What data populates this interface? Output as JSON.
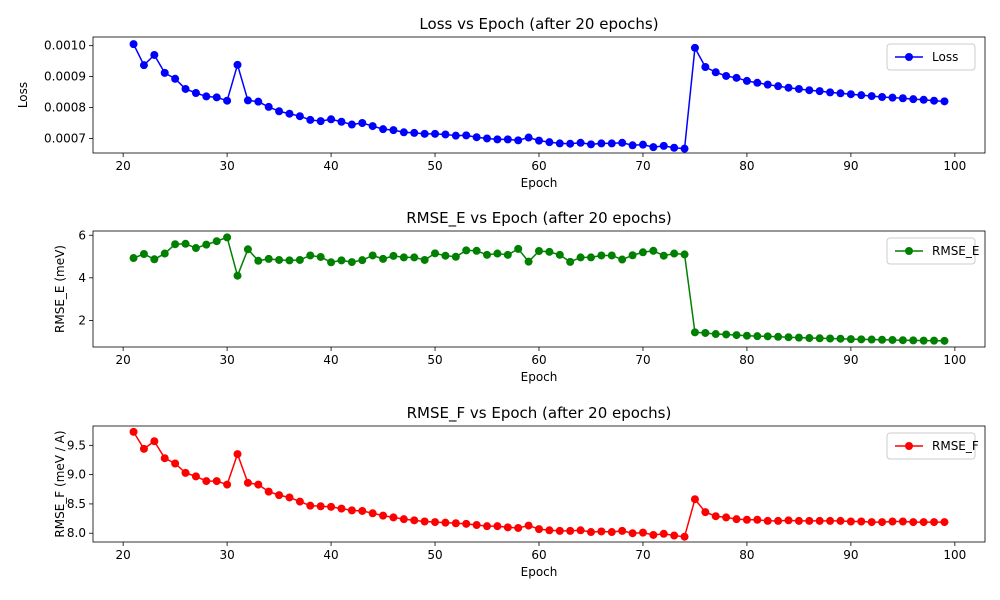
{
  "chart_data": [
    {
      "type": "line",
      "title": "Loss vs Epoch (after 20 epochs)",
      "xlabel": "Epoch",
      "ylabel": "Loss",
      "xlim": [
        17.1,
        102.9
      ],
      "ylim": [
        0.000653,
        0.001028
      ],
      "xticks": [
        20,
        30,
        40,
        50,
        60,
        70,
        80,
        90,
        100
      ],
      "yticks": [
        0.0007,
        0.0008,
        0.0009,
        0.001
      ],
      "ytick_labels": [
        "0.0007",
        "0.0008",
        "0.0009",
        "0.0010"
      ],
      "legend": "upper-right",
      "grid": false,
      "series": [
        {
          "name": "Loss",
          "color": "#0000ff",
          "marker": "circle",
          "x": [
            21,
            22,
            23,
            24,
            25,
            26,
            27,
            28,
            29,
            30,
            31,
            32,
            33,
            34,
            35,
            36,
            37,
            38,
            39,
            40,
            41,
            42,
            43,
            44,
            45,
            46,
            47,
            48,
            49,
            50,
            51,
            52,
            53,
            54,
            55,
            56,
            57,
            58,
            59,
            60,
            61,
            62,
            63,
            64,
            65,
            66,
            67,
            68,
            69,
            70,
            71,
            72,
            73,
            74,
            75,
            76,
            77,
            78,
            79,
            80,
            81,
            82,
            83,
            84,
            85,
            86,
            87,
            88,
            89,
            90,
            91,
            92,
            93,
            94,
            95,
            96,
            97,
            98,
            99
          ],
          "values": [
            0.001005,
            0.000937,
            0.00097,
            0.000912,
            0.000893,
            0.00086,
            0.000847,
            0.000836,
            0.000833,
            0.000822,
            0.000938,
            0.000823,
            0.000819,
            0.000802,
            0.000788,
            0.00078,
            0.000772,
            0.00076,
            0.000756,
            0.000762,
            0.000754,
            0.000745,
            0.00075,
            0.00074,
            0.00073,
            0.000727,
            0.00072,
            0.000718,
            0.000715,
            0.000715,
            0.000713,
            0.000709,
            0.00071,
            0.000704,
            0.0007,
            0.000697,
            0.000697,
            0.000694,
            0.000703,
            0.000693,
            0.000688,
            0.000684,
            0.000683,
            0.000686,
            0.000681,
            0.000684,
            0.000684,
            0.000686,
            0.000678,
            0.00068,
            0.000672,
            0.000676,
            0.00067,
            0.000667,
            0.000993,
            0.000931,
            0.000914,
            0.000902,
            0.000896,
            0.000886,
            0.00088,
            0.000874,
            0.000869,
            0.000864,
            0.00086,
            0.000856,
            0.000853,
            0.000849,
            0.000846,
            0.000843,
            0.00084,
            0.000837,
            0.000834,
            0.000832,
            0.00083,
            0.000827,
            0.000825,
            0.000822,
            0.00082
          ]
        }
      ]
    },
    {
      "type": "line",
      "title": "RMSE_E vs Epoch (after 20 epochs)",
      "xlabel": "Epoch",
      "ylabel": "RMSE_E (meV)",
      "xlim": [
        17.1,
        102.9
      ],
      "ylim": [
        0.75,
        6.2
      ],
      "xticks": [
        20,
        30,
        40,
        50,
        60,
        70,
        80,
        90,
        100
      ],
      "yticks": [
        2,
        4,
        6
      ],
      "ytick_labels": [
        "2",
        "4",
        "6"
      ],
      "legend": "upper-right",
      "grid": false,
      "series": [
        {
          "name": "RMSE_E",
          "color": "#008000",
          "marker": "circle",
          "x": [
            21,
            22,
            23,
            24,
            25,
            26,
            27,
            28,
            29,
            30,
            31,
            32,
            33,
            34,
            35,
            36,
            37,
            38,
            39,
            40,
            41,
            42,
            43,
            44,
            45,
            46,
            47,
            48,
            49,
            50,
            51,
            52,
            53,
            54,
            55,
            56,
            57,
            58,
            59,
            60,
            61,
            62,
            63,
            64,
            65,
            66,
            67,
            68,
            69,
            70,
            71,
            72,
            73,
            74,
            75,
            76,
            77,
            78,
            79,
            80,
            81,
            82,
            83,
            84,
            85,
            86,
            87,
            88,
            89,
            90,
            91,
            92,
            93,
            94,
            95,
            96,
            97,
            98,
            99
          ],
          "values": [
            4.93,
            5.12,
            4.87,
            5.14,
            5.58,
            5.6,
            5.4,
            5.56,
            5.72,
            5.9,
            4.1,
            5.34,
            4.8,
            4.89,
            4.84,
            4.82,
            4.84,
            5.05,
            4.98,
            4.73,
            4.82,
            4.74,
            4.83,
            5.05,
            4.89,
            5.03,
            4.96,
            4.96,
            4.84,
            5.15,
            5.04,
            4.99,
            5.29,
            5.27,
            5.08,
            5.14,
            5.08,
            5.36,
            4.76,
            5.26,
            5.22,
            5.08,
            4.75,
            4.96,
            4.96,
            5.05,
            5.05,
            4.86,
            5.06,
            5.2,
            5.27,
            5.04,
            5.14,
            5.1,
            1.44,
            1.41,
            1.36,
            1.34,
            1.31,
            1.28,
            1.26,
            1.25,
            1.23,
            1.21,
            1.19,
            1.17,
            1.16,
            1.15,
            1.14,
            1.12,
            1.11,
            1.1,
            1.09,
            1.08,
            1.07,
            1.06,
            1.05,
            1.05,
            1.04
          ]
        }
      ]
    },
    {
      "type": "line",
      "title": "RMSE_F vs Epoch (after 20 epochs)",
      "xlabel": "Epoch",
      "ylabel": "RMSE_F (meV / A)",
      "xlim": [
        17.1,
        102.9
      ],
      "ylim": [
        7.85,
        9.83
      ],
      "xticks": [
        20,
        30,
        40,
        50,
        60,
        70,
        80,
        90,
        100
      ],
      "yticks": [
        8.0,
        8.5,
        9.0,
        9.5
      ],
      "ytick_labels": [
        "8.0",
        "8.5",
        "9.0",
        "9.5"
      ],
      "legend": "upper-right",
      "grid": false,
      "series": [
        {
          "name": "RMSE_F",
          "color": "#ff0000",
          "marker": "circle",
          "x": [
            21,
            22,
            23,
            24,
            25,
            26,
            27,
            28,
            29,
            30,
            31,
            32,
            33,
            34,
            35,
            36,
            37,
            38,
            39,
            40,
            41,
            42,
            43,
            44,
            45,
            46,
            47,
            48,
            49,
            50,
            51,
            52,
            53,
            54,
            55,
            56,
            57,
            58,
            59,
            60,
            61,
            62,
            63,
            64,
            65,
            66,
            67,
            68,
            69,
            70,
            71,
            72,
            73,
            74,
            75,
            76,
            77,
            78,
            79,
            80,
            81,
            82,
            83,
            84,
            85,
            86,
            87,
            88,
            89,
            90,
            91,
            92,
            93,
            94,
            95,
            96,
            97,
            98,
            99
          ],
          "values": [
            9.73,
            9.44,
            9.57,
            9.28,
            9.19,
            9.03,
            8.97,
            8.89,
            8.89,
            8.83,
            9.35,
            8.86,
            8.83,
            8.71,
            8.65,
            8.61,
            8.54,
            8.47,
            8.46,
            8.45,
            8.42,
            8.39,
            8.38,
            8.34,
            8.3,
            8.27,
            8.24,
            8.22,
            8.2,
            8.19,
            8.18,
            8.17,
            8.16,
            8.14,
            8.12,
            8.12,
            8.1,
            8.09,
            8.13,
            8.07,
            8.05,
            8.04,
            8.04,
            8.05,
            8.02,
            8.03,
            8.02,
            8.04,
            8.0,
            8.01,
            7.97,
            7.99,
            7.96,
            7.94,
            8.58,
            8.36,
            8.29,
            8.27,
            8.24,
            8.23,
            8.23,
            8.21,
            8.21,
            8.22,
            8.21,
            8.21,
            8.21,
            8.21,
            8.21,
            8.2,
            8.2,
            8.19,
            8.19,
            8.2,
            8.2,
            8.19,
            8.19,
            8.19,
            8.19
          ]
        }
      ]
    }
  ]
}
